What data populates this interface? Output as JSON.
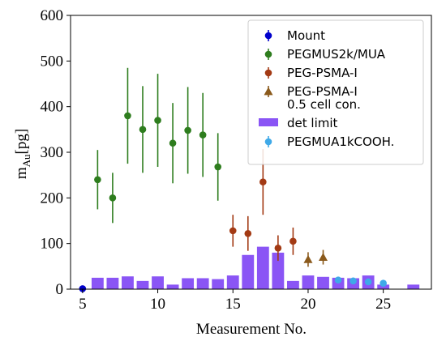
{
  "chart_data": {
    "type": "scatter",
    "xlabel": "Measurement No.",
    "ylabel_main": "m",
    "ylabel_sub": "Au",
    "ylabel_unit": "[pg]",
    "xlim": [
      4.2,
      28.2
    ],
    "ylim": [
      0,
      600
    ],
    "x_ticks": [
      5,
      10,
      15,
      20,
      25
    ],
    "y_ticks": [
      0,
      100,
      200,
      300,
      400,
      500,
      600
    ],
    "legend_position": "upper right",
    "series": [
      {
        "name": "Mount",
        "marker": "circle",
        "color": "#0000cc",
        "points": [
          {
            "x": 5,
            "y": 1,
            "err": 0
          }
        ]
      },
      {
        "name": "PEGMUS2k/MUA",
        "marker": "circle",
        "color": "#2e7d1e",
        "points": [
          {
            "x": 6,
            "y": 240,
            "err": 65
          },
          {
            "x": 7,
            "y": 200,
            "err": 55
          },
          {
            "x": 8,
            "y": 380,
            "err": 105
          },
          {
            "x": 9,
            "y": 350,
            "err": 95
          },
          {
            "x": 10,
            "y": 370,
            "err": 102
          },
          {
            "x": 11,
            "y": 320,
            "err": 88
          },
          {
            "x": 12,
            "y": 348,
            "err": 95
          },
          {
            "x": 13,
            "y": 338,
            "err": 92
          },
          {
            "x": 14,
            "y": 268,
            "err": 74
          }
        ]
      },
      {
        "name": "PEG-PSMA-I",
        "marker": "circle",
        "color": "#a33a14",
        "points": [
          {
            "x": 15,
            "y": 128,
            "err": 35
          },
          {
            "x": 16,
            "y": 122,
            "err": 38
          },
          {
            "x": 17,
            "y": 235,
            "err": 72
          },
          {
            "x": 18,
            "y": 90,
            "err": 28
          },
          {
            "x": 19,
            "y": 105,
            "err": 30
          }
        ]
      },
      {
        "name": "PEG-PSMA-I",
        "name_line2": "0.5 cell con.",
        "marker": "triangle",
        "color": "#8b5a1c",
        "points": [
          {
            "x": 20,
            "y": 65,
            "err": 16
          },
          {
            "x": 21,
            "y": 70,
            "err": 16
          }
        ]
      },
      {
        "name": "PEGMUA1kCOOH.",
        "marker": "circle",
        "color": "#3fa9e8",
        "points": [
          {
            "x": 22,
            "y": 20,
            "err": 6
          },
          {
            "x": 23,
            "y": 18,
            "err": 6
          },
          {
            "x": 24,
            "y": 16,
            "err": 6
          },
          {
            "x": 25,
            "y": 13,
            "err": 5
          }
        ]
      }
    ],
    "bars": {
      "name": "det limit",
      "color": "#8a55f5",
      "width": 0.8,
      "points": [
        {
          "x": 6,
          "y": 25
        },
        {
          "x": 7,
          "y": 25
        },
        {
          "x": 8,
          "y": 28
        },
        {
          "x": 9,
          "y": 18
        },
        {
          "x": 10,
          "y": 28
        },
        {
          "x": 11,
          "y": 10
        },
        {
          "x": 12,
          "y": 24
        },
        {
          "x": 13,
          "y": 24
        },
        {
          "x": 14,
          "y": 22
        },
        {
          "x": 15,
          "y": 30
        },
        {
          "x": 16,
          "y": 75
        },
        {
          "x": 17,
          "y": 93
        },
        {
          "x": 18,
          "y": 80
        },
        {
          "x": 19,
          "y": 18
        },
        {
          "x": 20,
          "y": 30
        },
        {
          "x": 21,
          "y": 27
        },
        {
          "x": 22,
          "y": 25
        },
        {
          "x": 23,
          "y": 24
        },
        {
          "x": 24,
          "y": 30
        },
        {
          "x": 25,
          "y": 10
        },
        {
          "x": 27,
          "y": 10
        }
      ]
    }
  }
}
